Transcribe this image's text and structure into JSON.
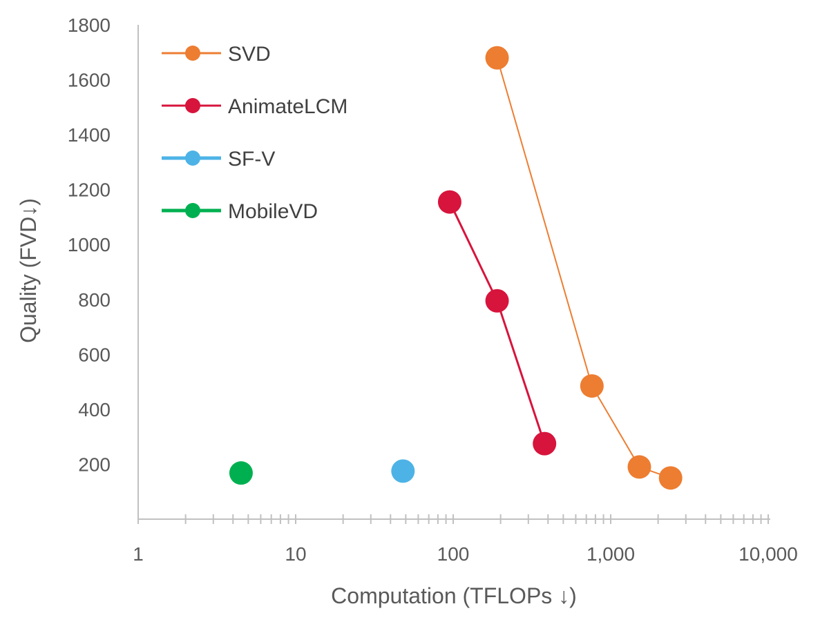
{
  "chart_data": {
    "type": "scatter",
    "title": "",
    "xlabel": "Computation (TFLOPs ↓)",
    "ylabel": "Quality (FVD↓)",
    "xscale": "log",
    "xlim": [
      1,
      10000
    ],
    "ylim": [
      0,
      1800
    ],
    "grid": false,
    "legend_position": "top-left",
    "x_tick_labels": [
      "1",
      "10",
      "100",
      "1,000",
      "10,000"
    ],
    "y_tick_labels": [
      "200",
      "400",
      "600",
      "800",
      "1000",
      "1200",
      "1400",
      "1600",
      "1800"
    ],
    "series": [
      {
        "name": "SVD",
        "color": "#ED7D31",
        "line": true,
        "points": [
          {
            "x": 190,
            "y": 1680
          },
          {
            "x": 760,
            "y": 485
          },
          {
            "x": 1520,
            "y": 190
          },
          {
            "x": 2400,
            "y": 150
          }
        ]
      },
      {
        "name": "AnimateLCM",
        "color": "#D7143C",
        "line": true,
        "points": [
          {
            "x": 95,
            "y": 1155
          },
          {
            "x": 190,
            "y": 795
          },
          {
            "x": 380,
            "y": 275
          }
        ]
      },
      {
        "name": "SF-V",
        "color": "#4DB3E6",
        "line": false,
        "points": [
          {
            "x": 48,
            "y": 175
          }
        ]
      },
      {
        "name": "MobileVD",
        "color": "#00B050",
        "line": false,
        "points": [
          {
            "x": 4.5,
            "y": 168
          }
        ]
      }
    ]
  }
}
